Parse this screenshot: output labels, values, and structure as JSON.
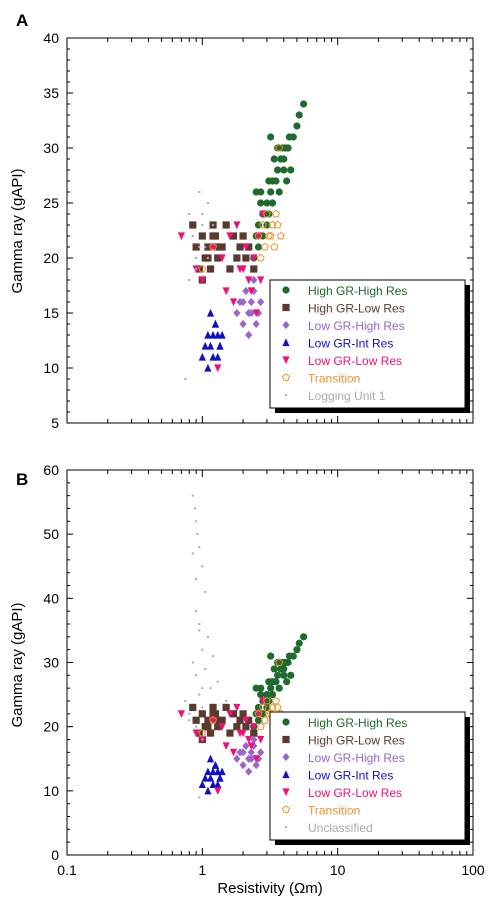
{
  "chart_data": [
    {
      "type": "scatter",
      "panel_label": "A",
      "ylabel": "Gamma ray (gAPI)",
      "xlabel": "",
      "xscale": "log",
      "xlim": [
        0.1,
        100
      ],
      "ylim": [
        5,
        40
      ],
      "y_ticks": [
        "5",
        "10",
        "15",
        "20",
        "25",
        "30",
        "35",
        "40"
      ],
      "x_ticks": [],
      "legend_position": "bottom-right",
      "series": [
        {
          "name": "High GR-High Res",
          "color": "#1e6b2e",
          "marker": "circle",
          "x": [
            2.6,
            2.8,
            3.0,
            3.3,
            3.6,
            4.0,
            4.3,
            4.7,
            5.2,
            5.6,
            2.7,
            3.1,
            3.4,
            3.9,
            4.4,
            5.0,
            2.5,
            2.9,
            3.2,
            3.5,
            3.8,
            4.1,
            4.5,
            2.6,
            3.0,
            3.3,
            3.7,
            4.2,
            2.4,
            2.8,
            3.1,
            2.5,
            2.7,
            3.6,
            4.0,
            3.2
          ],
          "y": [
            23,
            24,
            25,
            27,
            28,
            29,
            30,
            31,
            33,
            34,
            26,
            27,
            29,
            30,
            31,
            32,
            22,
            24,
            26,
            27,
            29,
            30,
            28,
            21,
            23,
            25,
            26,
            27,
            20,
            22,
            24,
            26,
            25,
            30,
            28,
            31
          ]
        },
        {
          "name": "High GR-Low Res",
          "color": "#5b3a2e",
          "marker": "square",
          "x": [
            0.85,
            0.9,
            0.95,
            1.0,
            1.05,
            1.1,
            1.15,
            1.2,
            1.25,
            1.3,
            1.4,
            1.5,
            1.6,
            1.7,
            1.8,
            1.9,
            2.0,
            2.1,
            2.2,
            2.4,
            1.0,
            1.1,
            1.2,
            1.3
          ],
          "y": [
            23,
            21,
            19,
            22,
            20,
            21,
            19,
            23,
            22,
            20,
            21,
            23,
            19,
            22,
            20,
            21,
            22,
            20,
            21,
            19,
            18,
            20,
            22,
            21
          ]
        },
        {
          "name": "Low GR-High Res",
          "color": "#9966cc",
          "marker": "diamond",
          "x": [
            1.8,
            1.9,
            2.0,
            2.1,
            2.2,
            2.3,
            2.4,
            2.5,
            2.6,
            2.7,
            2.2,
            2.4,
            2.0,
            2.3
          ],
          "y": [
            15,
            16,
            14,
            17,
            15,
            16,
            18,
            14,
            15,
            16,
            13,
            17,
            16,
            15
          ]
        },
        {
          "name": "Low GR-Int Res",
          "color": "#1010c0",
          "marker": "triangle-up",
          "x": [
            1.0,
            1.05,
            1.1,
            1.15,
            1.2,
            1.25,
            1.3,
            1.35,
            1.4,
            1.1,
            1.2,
            1.3,
            1.15,
            1.25,
            1.35
          ],
          "y": [
            11,
            12,
            13,
            12,
            13,
            14,
            13,
            12,
            13,
            10,
            11,
            11,
            15,
            14,
            12
          ]
        },
        {
          "name": "Low GR-Low Res",
          "color": "#ee1177",
          "marker": "triangle-down",
          "x": [
            0.7,
            0.9,
            1.0,
            1.2,
            1.4,
            1.6,
            1.8,
            2.0,
            2.2,
            2.4,
            2.6,
            2.8,
            1.5,
            1.7,
            1.9,
            2.1,
            2.3,
            2.5,
            2.7,
            1.3
          ],
          "y": [
            22,
            19,
            18,
            21,
            20,
            22,
            23,
            19,
            18,
            20,
            22,
            24,
            17,
            16,
            19,
            21,
            17,
            15,
            18,
            10
          ]
        },
        {
          "name": "Transition",
          "color": "#f0902a",
          "marker": "pentagon-open",
          "x": [
            2.6,
            2.8,
            3.0,
            3.2,
            3.4,
            3.6,
            3.8,
            2.7,
            2.9,
            3.1,
            3.3,
            3.5,
            1.0,
            1.2,
            3.7
          ],
          "y": [
            22,
            23,
            24,
            22,
            21,
            23,
            22,
            20,
            21,
            22,
            23,
            24,
            19,
            21,
            30
          ]
        },
        {
          "name": "Logging Unit 1",
          "color": "#aaaaaa",
          "marker": "dot",
          "x": [
            0.75,
            0.8,
            0.85,
            0.9,
            0.95,
            1.0,
            1.05,
            1.1,
            0.8,
            0.9,
            1.0,
            1.1,
            1.2,
            0.95,
            0.85
          ],
          "y": [
            9,
            24,
            22,
            20,
            26,
            23,
            21,
            20,
            18,
            19,
            24,
            25,
            23,
            21,
            22
          ]
        }
      ]
    },
    {
      "type": "scatter",
      "panel_label": "B",
      "ylabel": "Gamma ray (gAPI)",
      "xlabel": "Resistivity (Ωm)",
      "xscale": "log",
      "xlim": [
        0.1,
        100
      ],
      "ylim": [
        0,
        60
      ],
      "y_ticks": [
        "0",
        "10",
        "20",
        "30",
        "40",
        "50",
        "60"
      ],
      "x_ticks": [
        "0.1",
        "1",
        "10",
        "100"
      ],
      "legend_position": "bottom-right",
      "series": [
        {
          "name": "High GR-High Res",
          "color": "#1e6b2e",
          "marker": "circle",
          "x": [
            2.6,
            2.8,
            3.0,
            3.3,
            3.6,
            4.0,
            4.3,
            4.7,
            5.2,
            5.6,
            2.7,
            3.1,
            3.4,
            3.9,
            4.4,
            5.0,
            2.5,
            2.9,
            3.2,
            3.5,
            3.8,
            4.1,
            4.5,
            2.6,
            3.0,
            3.3,
            3.7,
            4.2,
            2.4,
            2.8,
            3.1,
            2.5,
            2.7,
            3.6,
            4.0,
            3.2
          ],
          "y": [
            23,
            24,
            25,
            27,
            28,
            29,
            30,
            31,
            33,
            34,
            26,
            27,
            29,
            30,
            31,
            32,
            22,
            24,
            26,
            27,
            29,
            30,
            28,
            21,
            23,
            25,
            26,
            27,
            20,
            22,
            24,
            26,
            25,
            30,
            28,
            31
          ]
        },
        {
          "name": "High GR-Low Res",
          "color": "#5b3a2e",
          "marker": "square",
          "x": [
            0.85,
            0.9,
            0.95,
            1.0,
            1.05,
            1.1,
            1.15,
            1.2,
            1.25,
            1.3,
            1.4,
            1.5,
            1.6,
            1.7,
            1.8,
            1.9,
            2.0,
            2.1,
            2.2,
            2.4,
            1.0,
            1.1,
            1.2,
            1.3
          ],
          "y": [
            23,
            21,
            19,
            22,
            20,
            21,
            19,
            23,
            22,
            20,
            21,
            23,
            19,
            22,
            20,
            21,
            22,
            20,
            21,
            19,
            18,
            20,
            22,
            21
          ]
        },
        {
          "name": "Low GR-High Res",
          "color": "#9966cc",
          "marker": "diamond",
          "x": [
            1.8,
            1.9,
            2.0,
            2.1,
            2.2,
            2.3,
            2.4,
            2.5,
            2.6,
            2.7,
            2.2,
            2.4,
            2.0,
            2.3
          ],
          "y": [
            15,
            16,
            14,
            17,
            15,
            16,
            18,
            14,
            15,
            16,
            13,
            17,
            16,
            15
          ]
        },
        {
          "name": "Low GR-Int Res",
          "color": "#1010c0",
          "marker": "triangle-up",
          "x": [
            1.0,
            1.05,
            1.1,
            1.15,
            1.2,
            1.25,
            1.3,
            1.35,
            1.4,
            1.1,
            1.2,
            1.3,
            1.15,
            1.25,
            1.35
          ],
          "y": [
            11,
            12,
            13,
            12,
            13,
            14,
            13,
            12,
            13,
            10,
            11,
            11,
            15,
            14,
            12
          ]
        },
        {
          "name": "Low GR-Low Res",
          "color": "#ee1177",
          "marker": "triangle-down",
          "x": [
            0.7,
            0.9,
            1.0,
            1.2,
            1.4,
            1.6,
            1.8,
            2.0,
            2.2,
            2.4,
            2.6,
            2.8,
            1.5,
            1.7,
            1.9,
            2.1,
            2.3,
            2.5,
            2.7,
            1.3
          ],
          "y": [
            22,
            19,
            18,
            21,
            20,
            22,
            23,
            19,
            18,
            20,
            22,
            24,
            17,
            16,
            19,
            21,
            17,
            15,
            18,
            10
          ]
        },
        {
          "name": "Transition",
          "color": "#f0902a",
          "marker": "pentagon-open",
          "x": [
            2.6,
            2.8,
            3.0,
            3.2,
            3.4,
            3.6,
            3.8,
            2.7,
            2.9,
            3.1,
            3.3,
            3.5,
            1.0,
            1.2,
            3.7
          ],
          "y": [
            22,
            23,
            24,
            22,
            21,
            23,
            22,
            20,
            21,
            22,
            23,
            24,
            19,
            21,
            30
          ]
        },
        {
          "name": "Unclassified",
          "color": "#aaaaaa",
          "marker": "dot",
          "x": [
            0.85,
            0.9,
            0.95,
            1.0,
            1.05,
            0.9,
            0.95,
            1.0,
            0.85,
            0.9,
            1.0,
            0.75,
            0.8,
            0.95,
            1.1,
            1.2,
            0.9,
            0.85,
            1.05,
            0.95,
            1.0,
            0.8,
            0.9,
            1.15,
            1.0,
            0.88,
            0.92,
            1.3,
            1.5,
            0.95
          ],
          "y": [
            56,
            52,
            48,
            45,
            41,
            38,
            35,
            32,
            30,
            28,
            26,
            24,
            22,
            36,
            34,
            31,
            43,
            47,
            29,
            25,
            23,
            21,
            20,
            26,
            18,
            54,
            50,
            27,
            24,
            9
          ]
        }
      ]
    }
  ]
}
